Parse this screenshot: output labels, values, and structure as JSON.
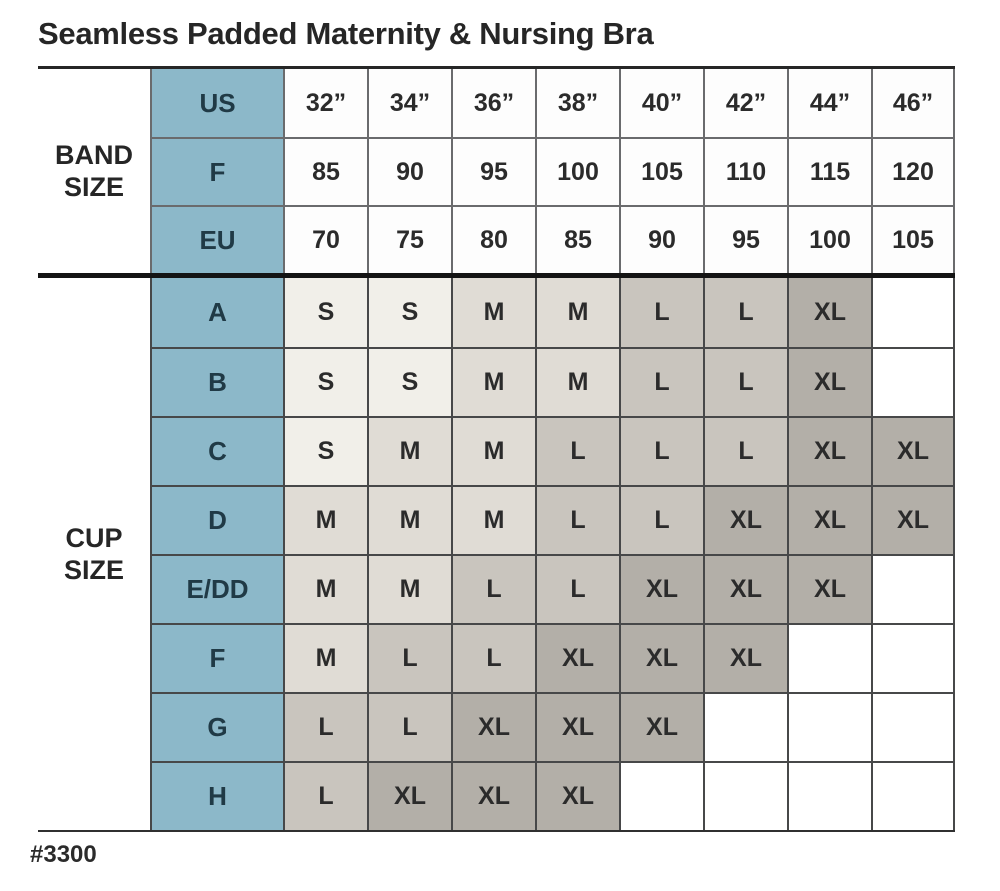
{
  "title": "Seamless Padded Maternity & Nursing Bra",
  "footer": {
    "style_number": "#3300"
  },
  "colors": {
    "teal": "#8cb8c9",
    "size_s": "#f1efe9",
    "size_m": "#e0dcd5",
    "size_l": "#c9c5be",
    "size_xl": "#b3afa8",
    "empty": "#ffffff"
  },
  "chart_data": {
    "type": "table",
    "title": "Seamless Padded Maternity & Nursing Bra",
    "sections": [
      {
        "name": "BAND SIZE",
        "rows": [
          {
            "key": "US",
            "values": [
              "32”",
              "34”",
              "36”",
              "38”",
              "40”",
              "42”",
              "44”",
              "46”"
            ]
          },
          {
            "key": "F",
            "values": [
              "85",
              "90",
              "95",
              "100",
              "105",
              "110",
              "115",
              "120"
            ]
          },
          {
            "key": "EU",
            "values": [
              "70",
              "75",
              "80",
              "85",
              "90",
              "95",
              "100",
              "105"
            ]
          }
        ]
      },
      {
        "name": "CUP SIZE",
        "rows": [
          {
            "key": "A",
            "values": [
              "S",
              "S",
              "M",
              "M",
              "L",
              "L",
              "XL",
              ""
            ]
          },
          {
            "key": "B",
            "values": [
              "S",
              "S",
              "M",
              "M",
              "L",
              "L",
              "XL",
              ""
            ]
          },
          {
            "key": "C",
            "values": [
              "S",
              "M",
              "M",
              "L",
              "L",
              "L",
              "XL",
              "XL"
            ]
          },
          {
            "key": "D",
            "values": [
              "M",
              "M",
              "M",
              "L",
              "L",
              "XL",
              "XL",
              "XL"
            ]
          },
          {
            "key": "E/DD",
            "values": [
              "M",
              "M",
              "L",
              "L",
              "XL",
              "XL",
              "XL",
              ""
            ]
          },
          {
            "key": "F",
            "values": [
              "M",
              "L",
              "L",
              "XL",
              "XL",
              "XL",
              "",
              ""
            ]
          },
          {
            "key": "G",
            "values": [
              "L",
              "L",
              "XL",
              "XL",
              "XL",
              "",
              "",
              ""
            ]
          },
          {
            "key": "H",
            "values": [
              "L",
              "XL",
              "XL",
              "XL",
              "",
              "",
              "",
              ""
            ]
          }
        ]
      }
    ],
    "legend": "Cell shading maps to size: S lightest gray through XL darkest gray; blank cells = size not available"
  }
}
